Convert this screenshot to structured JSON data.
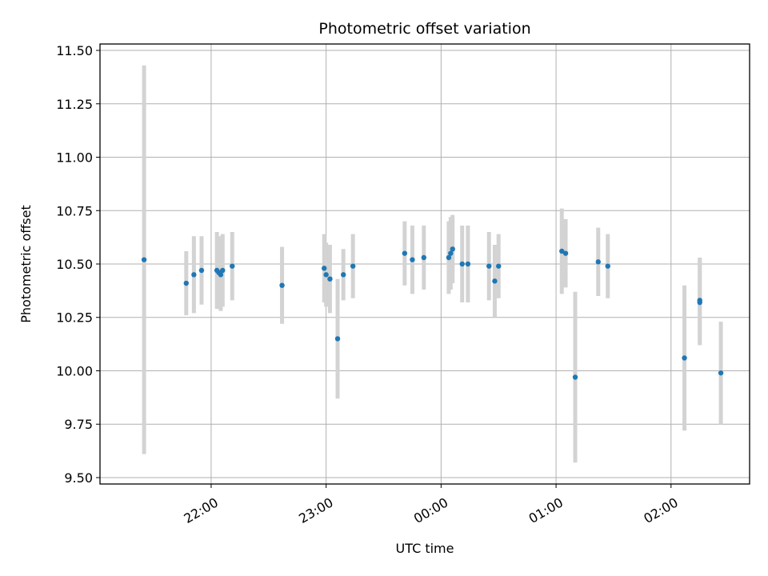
{
  "chart_data": {
    "type": "scatter",
    "title": "Photometric offset variation",
    "xlabel": "UTC time",
    "ylabel": "Photometric offset",
    "grid": true,
    "x_unit": "UTC time (HH:MM), day boundary at 00:00",
    "xlim": [
      "21:02",
      "02:41"
    ],
    "ylim": [
      9.47,
      11.53
    ],
    "x_ticks": [
      "22:00",
      "23:00",
      "00:00",
      "01:00",
      "02:00"
    ],
    "y_ticks": [
      "9.50",
      "9.75",
      "10.00",
      "10.25",
      "10.50",
      "10.75",
      "11.00",
      "11.25",
      "11.50"
    ],
    "colors": {
      "point": "#1f77b4",
      "errorbar": "#d3d3d3",
      "grid": "#b0b0b0"
    },
    "series": [
      {
        "points": [
          {
            "t": "21:25",
            "y": 10.52,
            "err": 0.91
          },
          {
            "t": "21:47",
            "y": 10.41,
            "err": 0.15
          },
          {
            "t": "21:51",
            "y": 10.45,
            "err": 0.18
          },
          {
            "t": "21:55",
            "y": 10.47,
            "err": 0.16
          },
          {
            "t": "22:03",
            "y": 10.47,
            "err": 0.18
          },
          {
            "t": "22:04",
            "y": 10.46,
            "err": 0.17
          },
          {
            "t": "22:05",
            "y": 10.45,
            "err": 0.17
          },
          {
            "t": "22:06",
            "y": 10.47,
            "err": 0.17
          },
          {
            "t": "22:11",
            "y": 10.49,
            "err": 0.16
          },
          {
            "t": "22:37",
            "y": 10.4,
            "err": 0.18
          },
          {
            "t": "22:59",
            "y": 10.48,
            "err": 0.16
          },
          {
            "t": "23:00",
            "y": 10.45,
            "err": 0.15
          },
          {
            "t": "23:02",
            "y": 10.43,
            "err": 0.16
          },
          {
            "t": "23:06",
            "y": 10.15,
            "err": 0.28
          },
          {
            "t": "23:09",
            "y": 10.45,
            "err": 0.12
          },
          {
            "t": "23:14",
            "y": 10.49,
            "err": 0.15
          },
          {
            "t": "23:41",
            "y": 10.55,
            "err": 0.15
          },
          {
            "t": "23:45",
            "y": 10.52,
            "err": 0.16
          },
          {
            "t": "23:51",
            "y": 10.53,
            "err": 0.15
          },
          {
            "t": "00:04",
            "y": 10.53,
            "err": 0.17
          },
          {
            "t": "00:05",
            "y": 10.55,
            "err": 0.17
          },
          {
            "t": "00:06",
            "y": 10.57,
            "err": 0.16
          },
          {
            "t": "00:11",
            "y": 10.5,
            "err": 0.18
          },
          {
            "t": "00:14",
            "y": 10.5,
            "err": 0.18
          },
          {
            "t": "00:25",
            "y": 10.49,
            "err": 0.16
          },
          {
            "t": "00:28",
            "y": 10.42,
            "err": 0.17
          },
          {
            "t": "00:30",
            "y": 10.49,
            "err": 0.15
          },
          {
            "t": "01:03",
            "y": 10.56,
            "err": 0.2
          },
          {
            "t": "01:05",
            "y": 10.55,
            "err": 0.16
          },
          {
            "t": "01:10",
            "y": 9.97,
            "err": 0.4
          },
          {
            "t": "01:22",
            "y": 10.51,
            "err": 0.16
          },
          {
            "t": "01:27",
            "y": 10.49,
            "err": 0.15
          },
          {
            "t": "02:07",
            "y": 10.06,
            "err": 0.34
          },
          {
            "t": "02:15",
            "y": 10.33,
            "err": 0.2
          },
          {
            "t": "02:15",
            "y": 10.32,
            "err": 0.2
          },
          {
            "t": "02:26",
            "y": 9.99,
            "err": 0.24
          }
        ]
      }
    ]
  }
}
